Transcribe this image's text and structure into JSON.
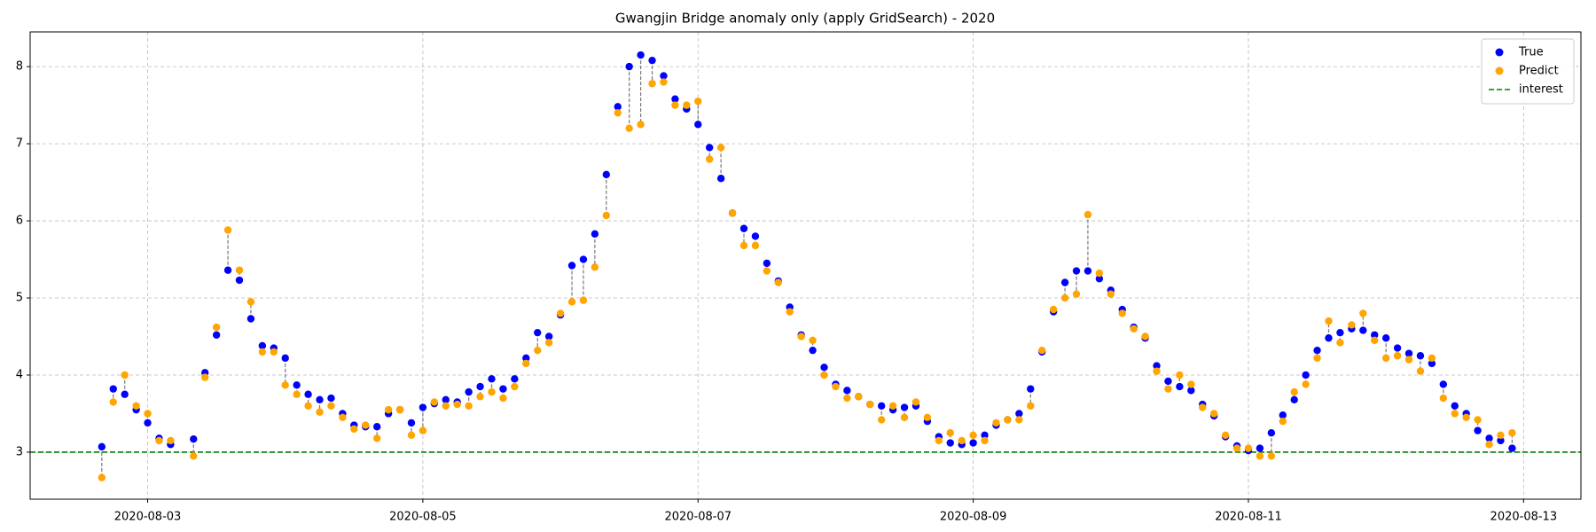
{
  "chart_data": {
    "type": "scatter",
    "title": "Gwangjin Bridge anomaly only (apply GridSearch) - 2020",
    "x": [
      "2020-08-02 16:00",
      "2020-08-02 18:00",
      "2020-08-02 20:00",
      "2020-08-02 22:00",
      "2020-08-03 00:00",
      "2020-08-03 02:00",
      "2020-08-03 04:00",
      "2020-08-03 08:00",
      "2020-08-03 10:00",
      "2020-08-03 12:00",
      "2020-08-03 14:00",
      "2020-08-03 16:00",
      "2020-08-03 18:00",
      "2020-08-03 20:00",
      "2020-08-03 22:00",
      "2020-08-04 00:00",
      "2020-08-04 02:00",
      "2020-08-04 04:00",
      "2020-08-04 06:00",
      "2020-08-04 08:00",
      "2020-08-04 10:00",
      "2020-08-04 12:00",
      "2020-08-04 14:00",
      "2020-08-04 16:00",
      "2020-08-04 18:00",
      "2020-08-04 20:00",
      "2020-08-04 22:00",
      "2020-08-05 00:00",
      "2020-08-05 02:00",
      "2020-08-05 04:00",
      "2020-08-05 06:00",
      "2020-08-05 08:00",
      "2020-08-05 10:00",
      "2020-08-05 12:00",
      "2020-08-05 14:00",
      "2020-08-05 16:00",
      "2020-08-05 18:00",
      "2020-08-05 20:00",
      "2020-08-05 22:00",
      "2020-08-06 00:00",
      "2020-08-06 02:00",
      "2020-08-06 04:00",
      "2020-08-06 06:00",
      "2020-08-06 08:00",
      "2020-08-06 10:00",
      "2020-08-06 12:00",
      "2020-08-06 14:00",
      "2020-08-06 16:00",
      "2020-08-06 18:00",
      "2020-08-06 20:00",
      "2020-08-06 22:00",
      "2020-08-07 00:00",
      "2020-08-07 02:00",
      "2020-08-07 04:00",
      "2020-08-07 06:00",
      "2020-08-07 08:00",
      "2020-08-07 10:00",
      "2020-08-07 12:00",
      "2020-08-07 14:00",
      "2020-08-07 16:00",
      "2020-08-07 18:00",
      "2020-08-07 20:00",
      "2020-08-07 22:00",
      "2020-08-08 00:00",
      "2020-08-08 02:00",
      "2020-08-08 04:00",
      "2020-08-08 06:00",
      "2020-08-08 08:00",
      "2020-08-08 10:00",
      "2020-08-08 12:00",
      "2020-08-08 14:00",
      "2020-08-08 16:00",
      "2020-08-08 18:00",
      "2020-08-08 20:00",
      "2020-08-08 22:00",
      "2020-08-09 00:00",
      "2020-08-09 02:00",
      "2020-08-09 04:00",
      "2020-08-09 06:00",
      "2020-08-09 08:00",
      "2020-08-09 10:00",
      "2020-08-09 12:00",
      "2020-08-09 14:00",
      "2020-08-09 16:00",
      "2020-08-09 18:00",
      "2020-08-09 20:00",
      "2020-08-09 22:00",
      "2020-08-10 00:00",
      "2020-08-10 02:00",
      "2020-08-10 04:00",
      "2020-08-10 06:00",
      "2020-08-10 08:00",
      "2020-08-10 10:00",
      "2020-08-10 12:00",
      "2020-08-10 14:00",
      "2020-08-10 16:00",
      "2020-08-10 18:00",
      "2020-08-10 20:00",
      "2020-08-10 22:00",
      "2020-08-11 00:00",
      "2020-08-11 02:00",
      "2020-08-11 04:00",
      "2020-08-11 06:00",
      "2020-08-11 08:00",
      "2020-08-11 10:00",
      "2020-08-11 12:00",
      "2020-08-11 14:00",
      "2020-08-11 16:00",
      "2020-08-11 18:00",
      "2020-08-11 20:00",
      "2020-08-11 22:00",
      "2020-08-12 00:00",
      "2020-08-12 02:00",
      "2020-08-12 04:00",
      "2020-08-12 06:00",
      "2020-08-12 08:00",
      "2020-08-12 10:00",
      "2020-08-12 12:00",
      "2020-08-12 14:00",
      "2020-08-12 16:00",
      "2020-08-12 18:00",
      "2020-08-12 20:00",
      "2020-08-12 22:00"
    ],
    "series": [
      {
        "name": "True",
        "color": "#0000ff",
        "values": [
          3.07,
          3.82,
          3.75,
          3.55,
          3.38,
          3.18,
          3.1,
          3.17,
          4.03,
          4.52,
          5.36,
          5.23,
          4.73,
          4.38,
          4.35,
          4.22,
          3.87,
          3.75,
          3.68,
          3.7,
          3.5,
          3.35,
          3.33,
          3.33,
          3.5,
          3.55,
          3.38,
          3.58,
          3.63,
          3.68,
          3.65,
          3.78,
          3.85,
          3.95,
          3.82,
          3.95,
          4.22,
          4.55,
          4.5,
          4.78,
          5.42,
          5.5,
          5.83,
          6.6,
          7.48,
          8.0,
          8.15,
          8.08,
          7.88,
          7.58,
          7.45,
          7.25,
          6.95,
          6.55,
          6.1,
          5.9,
          5.8,
          5.45,
          5.22,
          4.88,
          4.52,
          4.32,
          4.1,
          3.88,
          3.8,
          3.72,
          3.62,
          3.6,
          3.55,
          3.58,
          3.6,
          3.4,
          3.2,
          3.12,
          3.1,
          3.12,
          3.22,
          3.35,
          3.42,
          3.5,
          3.82,
          4.3,
          4.82,
          5.2,
          5.35,
          5.35,
          5.25,
          5.1,
          4.85,
          4.62,
          4.48,
          4.12,
          3.92,
          3.85,
          3.8,
          3.62,
          3.47,
          3.2,
          3.08,
          3.02,
          3.05,
          3.25,
          3.48,
          3.68,
          4.0,
          4.32,
          4.48,
          4.55,
          4.6,
          4.58,
          4.52,
          4.48,
          4.35,
          4.28,
          4.25,
          4.15,
          3.88,
          3.6,
          3.5,
          3.28,
          3.18,
          3.15,
          3.05
        ]
      },
      {
        "name": "Predict",
        "color": "#ffa500",
        "values": [
          2.67,
          3.65,
          4.0,
          3.6,
          3.5,
          3.15,
          3.15,
          2.95,
          3.97,
          4.62,
          5.88,
          5.36,
          4.95,
          4.3,
          4.3,
          3.87,
          3.75,
          3.6,
          3.52,
          3.6,
          3.45,
          3.3,
          3.35,
          3.18,
          3.55,
          3.55,
          3.22,
          3.28,
          3.65,
          3.6,
          3.62,
          3.6,
          3.72,
          3.78,
          3.7,
          3.85,
          4.15,
          4.32,
          4.42,
          4.8,
          4.95,
          4.97,
          5.4,
          6.07,
          7.4,
          7.2,
          7.25,
          7.78,
          7.8,
          7.5,
          7.5,
          7.55,
          6.8,
          6.95,
          6.1,
          5.68,
          5.68,
          5.35,
          5.2,
          4.82,
          4.5,
          4.45,
          4.0,
          3.85,
          3.7,
          3.72,
          3.62,
          3.42,
          3.6,
          3.45,
          3.65,
          3.45,
          3.15,
          3.25,
          3.15,
          3.22,
          3.15,
          3.38,
          3.42,
          3.42,
          3.6,
          4.32,
          4.85,
          5.0,
          5.05,
          6.08,
          5.32,
          5.05,
          4.8,
          4.6,
          4.5,
          4.05,
          3.82,
          4.0,
          3.88,
          3.58,
          3.5,
          3.22,
          3.05,
          3.05,
          2.95,
          2.95,
          3.4,
          3.78,
          3.88,
          4.22,
          4.7,
          4.42,
          4.65,
          4.8,
          4.45,
          4.22,
          4.25,
          4.2,
          4.05,
          4.22,
          3.7,
          3.5,
          3.45,
          3.42,
          3.1,
          3.22,
          3.25
        ]
      }
    ],
    "reference_lines": [
      {
        "name": "interest",
        "value": 3,
        "color": "#008000"
      }
    ],
    "xlim": [
      "2020-08-02 03:30",
      "2020-08-13 10:00"
    ],
    "xticks": [
      "2020-08-03",
      "2020-08-05",
      "2020-08-07",
      "2020-08-09",
      "2020-08-11",
      "2020-08-13"
    ],
    "ylim": [
      2.39,
      8.45
    ],
    "yticks": [
      3,
      4,
      5,
      6,
      7,
      8
    ],
    "grid": true,
    "legend": "upper right"
  }
}
